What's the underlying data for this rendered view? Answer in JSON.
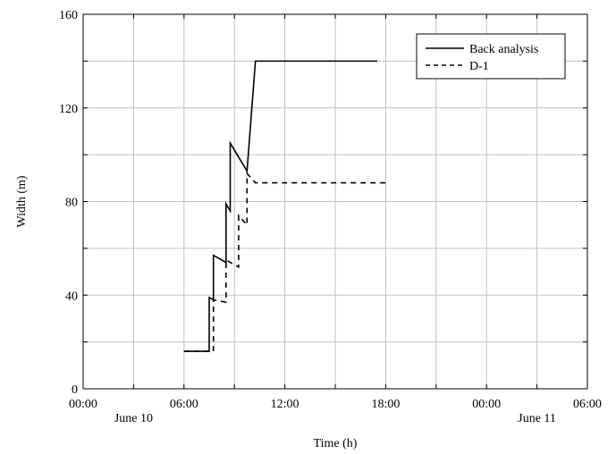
{
  "chart_data": {
    "type": "line",
    "title": "",
    "xlabel": "Time (h)",
    "ylabel": "Width (m)",
    "xlim": [
      "2023-06-10 00:00",
      "2023-06-11 06:00"
    ],
    "ylim": [
      0,
      160
    ],
    "x_ticks": [
      "00:00",
      "03:00",
      "06:00",
      "09:00",
      "12:00",
      "15:00",
      "18:00",
      "21:00",
      "00:00",
      "03:00",
      "06:00"
    ],
    "x_tick_labels": [
      "00:00",
      "06:00",
      "12:00",
      "18:00",
      "00:00",
      "06:00"
    ],
    "date_labels": [
      "June 10",
      "June 11"
    ],
    "y_ticks": [
      0,
      40,
      80,
      120,
      160
    ],
    "grid": true,
    "legend_position": "top-right",
    "series": [
      {
        "name": "Back analysis",
        "style": "solid",
        "color": "#000000",
        "points": [
          [
            "06:00",
            16
          ],
          [
            "07:30",
            16
          ],
          [
            "07:30",
            39
          ],
          [
            "07:45",
            38
          ],
          [
            "07:45",
            57
          ],
          [
            "08:30",
            54
          ],
          [
            "08:30",
            79
          ],
          [
            "08:45",
            76
          ],
          [
            "08:45",
            105
          ],
          [
            "09:45",
            93
          ],
          [
            "10:15",
            140
          ],
          [
            "17:30",
            140
          ]
        ]
      },
      {
        "name": "D-1",
        "style": "dashed",
        "color": "#000000",
        "points": [
          [
            "06:00",
            16
          ],
          [
            "07:45",
            16
          ],
          [
            "07:45",
            38
          ],
          [
            "08:30",
            37
          ],
          [
            "08:30",
            55
          ],
          [
            "09:15",
            52
          ],
          [
            "09:15",
            74
          ],
          [
            "09:45",
            70
          ],
          [
            "09:45",
            92
          ],
          [
            "10:15",
            88
          ],
          [
            "18:15",
            88
          ]
        ]
      }
    ]
  }
}
